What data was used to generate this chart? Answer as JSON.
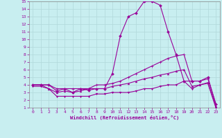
{
  "xlabel": "Windchill (Refroidissement éolien,°C)",
  "xlim": [
    -0.5,
    23.5
  ],
  "ylim": [
    1,
    15
  ],
  "xticks": [
    0,
    1,
    2,
    3,
    4,
    5,
    6,
    7,
    8,
    9,
    10,
    11,
    12,
    13,
    14,
    15,
    16,
    17,
    18,
    19,
    20,
    21,
    22,
    23
  ],
  "yticks": [
    1,
    2,
    3,
    4,
    5,
    6,
    7,
    8,
    9,
    10,
    11,
    12,
    13,
    14,
    15
  ],
  "background_color": "#c8eef0",
  "grid_color": "#b0d8da",
  "line_color": "#990099",
  "line1_x": [
    0,
    1,
    2,
    3,
    4,
    5,
    6,
    7,
    8,
    9,
    10,
    11,
    12,
    13,
    14,
    15,
    16,
    17,
    18,
    19,
    20,
    21,
    22,
    23
  ],
  "line1_y": [
    4.0,
    4.0,
    4.0,
    3.2,
    3.5,
    3.0,
    3.5,
    3.3,
    3.5,
    3.5,
    5.5,
    10.5,
    13.0,
    13.5,
    15.0,
    15.0,
    14.5,
    11.0,
    8.0,
    4.5,
    4.5,
    4.5,
    5.0,
    1.5
  ],
  "line2_x": [
    0,
    1,
    2,
    3,
    4,
    5,
    6,
    7,
    8,
    9,
    10,
    11,
    12,
    13,
    14,
    15,
    16,
    17,
    18,
    19,
    20,
    21,
    22,
    23
  ],
  "line2_y": [
    4.0,
    4.0,
    4.0,
    3.5,
    3.5,
    3.5,
    3.5,
    3.5,
    4.0,
    4.0,
    4.2,
    4.5,
    5.0,
    5.5,
    6.0,
    6.5,
    7.0,
    7.5,
    7.8,
    8.0,
    4.5,
    4.5,
    4.8,
    1.5
  ],
  "line3_x": [
    0,
    1,
    2,
    3,
    4,
    5,
    6,
    7,
    8,
    9,
    10,
    11,
    12,
    13,
    14,
    15,
    16,
    17,
    18,
    19,
    20,
    21,
    22,
    23
  ],
  "line3_y": [
    4.0,
    4.0,
    3.5,
    3.0,
    3.2,
    3.0,
    3.2,
    3.5,
    3.5,
    3.5,
    3.8,
    4.0,
    4.2,
    4.5,
    4.8,
    5.0,
    5.3,
    5.5,
    5.8,
    6.0,
    3.8,
    4.0,
    4.3,
    1.2
  ],
  "line4_x": [
    0,
    1,
    2,
    3,
    4,
    5,
    6,
    7,
    8,
    9,
    10,
    11,
    12,
    13,
    14,
    15,
    16,
    17,
    18,
    19,
    20,
    21,
    22,
    23
  ],
  "line4_y": [
    3.8,
    3.8,
    3.5,
    2.5,
    2.5,
    2.5,
    2.5,
    2.5,
    2.8,
    2.8,
    3.0,
    3.0,
    3.0,
    3.2,
    3.5,
    3.5,
    3.8,
    4.0,
    4.0,
    4.5,
    3.5,
    4.0,
    4.2,
    1.0
  ]
}
